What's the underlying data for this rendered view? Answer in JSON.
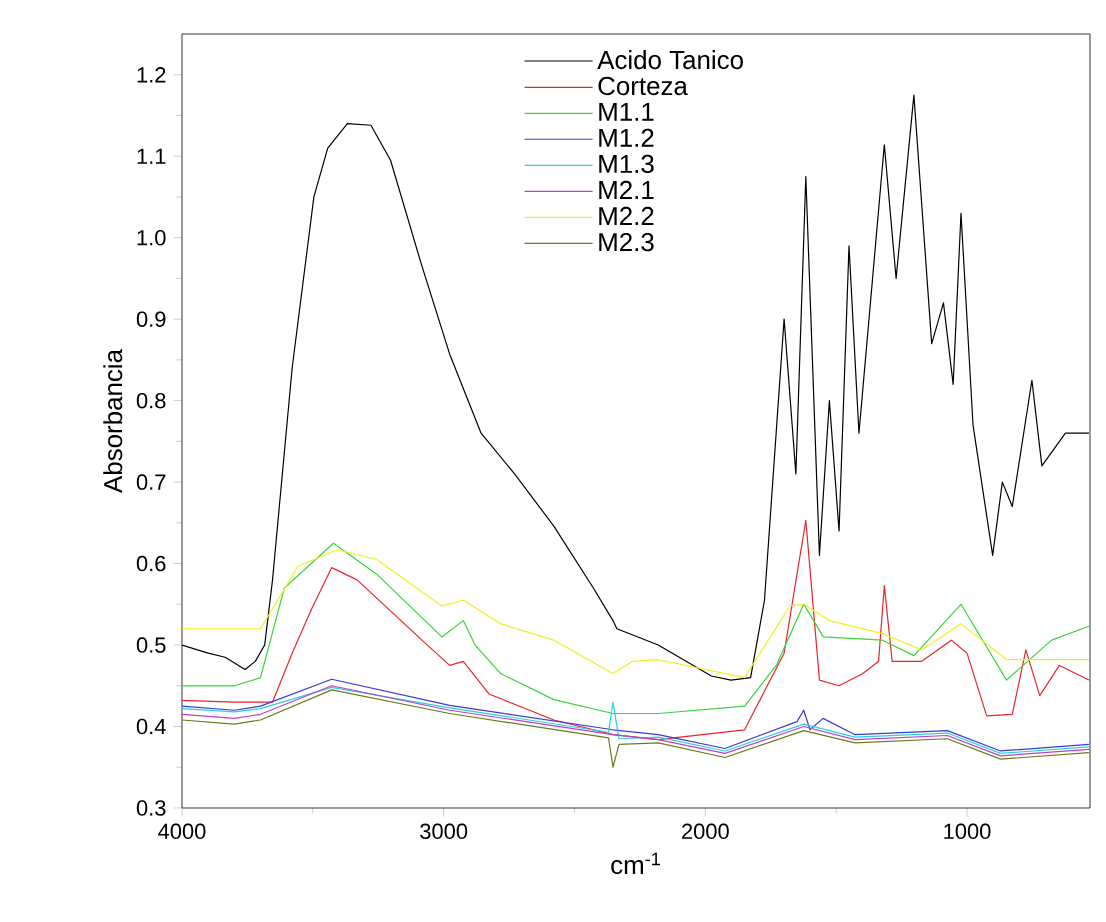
{
  "chart_data": {
    "type": "line",
    "xlabel": "cm$^{-1}$",
    "ylabel": "Absorbancia",
    "xlim": [
      4000,
      530
    ],
    "ylim": [
      0.3,
      1.25
    ],
    "xticks": [
      4000,
      3000,
      2000,
      1000
    ],
    "yticks": [
      0.3,
      0.4,
      0.5,
      0.6,
      0.7,
      0.8,
      0.9,
      {
        "value": 1.0,
        "label": "1.0"
      },
      1.1,
      1.2
    ],
    "legend": "top",
    "grid": false,
    "marker": "none",
    "line_style": "solid",
    "series": [
      {
        "name": "Acido Tanico",
        "color": "#000000",
        "x": [
          4000,
          3900,
          3835,
          3759,
          3720,
          3684,
          3654,
          3579,
          3496,
          3443,
          3368,
          3278,
          3203,
          3083,
          2977,
          2857,
          2729,
          2579,
          2428,
          2353,
          2338,
          2180,
          1977,
          1902,
          1827,
          1774,
          1699,
          1654,
          1616,
          1564,
          1526,
          1489,
          1451,
          1413,
          1316,
          1271,
          1203,
          1135,
          1090,
          1053,
          1023,
          977,
          902,
          865,
          827,
          752,
          714,
          624,
          534
        ],
        "values": [
          0.5,
          0.49,
          0.485,
          0.47,
          0.48,
          0.5,
          0.58,
          0.84,
          1.05,
          1.11,
          1.14,
          1.138,
          1.095,
          0.965,
          0.857,
          0.76,
          0.71,
          0.646,
          0.57,
          0.53,
          0.52,
          0.5,
          0.462,
          0.457,
          0.46,
          0.555,
          0.9,
          0.71,
          1.075,
          0.61,
          0.8,
          0.64,
          0.99,
          0.76,
          1.114,
          0.95,
          1.175,
          0.87,
          0.92,
          0.82,
          1.03,
          0.77,
          0.61,
          0.7,
          0.67,
          0.825,
          0.72,
          0.76,
          0.76
        ]
      },
      {
        "name": "Corteza",
        "color": "#e8262a",
        "x": [
          4000,
          3800,
          3700,
          3654,
          3579,
          3504,
          3428,
          3331,
          3083,
          2977,
          2925,
          2827,
          2579,
          2353,
          2180,
          1850,
          1699,
          1616,
          1564,
          1489,
          1398,
          1338,
          1316,
          1286,
          1173,
          1060,
          1000,
          925,
          827,
          775,
          722,
          647,
          534
        ],
        "values": [
          0.432,
          0.43,
          0.43,
          0.43,
          0.49,
          0.545,
          0.595,
          0.58,
          0.506,
          0.475,
          0.48,
          0.44,
          0.408,
          0.39,
          0.384,
          0.396,
          0.49,
          0.653,
          0.457,
          0.45,
          0.465,
          0.48,
          0.573,
          0.48,
          0.48,
          0.506,
          0.49,
          0.413,
          0.415,
          0.494,
          0.438,
          0.475,
          0.457
        ]
      },
      {
        "name": "M1.1",
        "color": "#3bd43b",
        "x": [
          4000,
          3800,
          3700,
          3609,
          3421,
          3256,
          3007,
          2925,
          2880,
          2782,
          2579,
          2353,
          2180,
          1850,
          1729,
          1624,
          1549,
          1323,
          1203,
          1023,
          849,
          677,
          534
        ],
        "values": [
          0.45,
          0.45,
          0.46,
          0.57,
          0.625,
          0.587,
          0.51,
          0.53,
          0.5,
          0.465,
          0.433,
          0.416,
          0.416,
          0.425,
          0.475,
          0.55,
          0.51,
          0.506,
          0.487,
          0.55,
          0.457,
          0.506,
          0.523
        ]
      },
      {
        "name": "M1.2",
        "color": "#3a3ad8",
        "x": [
          4000,
          3800,
          3700,
          3428,
          2977,
          2353,
          2180,
          1925,
          1650,
          1624,
          1600,
          1550,
          1428,
          1075,
          872,
          534
        ],
        "values": [
          0.425,
          0.42,
          0.425,
          0.458,
          0.426,
          0.396,
          0.39,
          0.373,
          0.406,
          0.42,
          0.396,
          0.41,
          0.39,
          0.395,
          0.37,
          0.378
        ]
      },
      {
        "name": "M1.3",
        "color": "#2ad0e0",
        "x": [
          4000,
          3800,
          3700,
          3428,
          2977,
          2370,
          2353,
          2330,
          2180,
          1925,
          1624,
          1428,
          1075,
          872,
          534
        ],
        "values": [
          0.422,
          0.418,
          0.422,
          0.448,
          0.423,
          0.393,
          0.43,
          0.385,
          0.387,
          0.37,
          0.403,
          0.387,
          0.392,
          0.367,
          0.375
        ]
      },
      {
        "name": "M2.1",
        "color": "#c040c0",
        "x": [
          4000,
          3800,
          3700,
          3428,
          2977,
          2353,
          2180,
          1925,
          1624,
          1428,
          1075,
          872,
          534
        ],
        "values": [
          0.415,
          0.41,
          0.415,
          0.45,
          0.42,
          0.39,
          0.384,
          0.367,
          0.4,
          0.384,
          0.389,
          0.364,
          0.372
        ]
      },
      {
        "name": "M2.2",
        "color": "#f0f020",
        "x": [
          4000,
          3800,
          3700,
          3556,
          3406,
          3256,
          3007,
          2925,
          2782,
          2579,
          2353,
          2278,
          2180,
          1850,
          1677,
          1624,
          1526,
          1323,
          1173,
          1023,
          849,
          677,
          534
        ],
        "values": [
          0.52,
          0.52,
          0.52,
          0.597,
          0.617,
          0.605,
          0.548,
          0.555,
          0.526,
          0.506,
          0.465,
          0.48,
          0.482,
          0.46,
          0.548,
          0.55,
          0.53,
          0.514,
          0.494,
          0.526,
          0.482,
          0.482,
          0.482
        ]
      },
      {
        "name": "M2.3",
        "color": "#6b7a1a",
        "x": [
          4000,
          3800,
          3700,
          3428,
          2977,
          2370,
          2353,
          2330,
          2180,
          1925,
          1624,
          1428,
          1075,
          872,
          534
        ],
        "values": [
          0.408,
          0.403,
          0.408,
          0.445,
          0.416,
          0.386,
          0.35,
          0.378,
          0.38,
          0.362,
          0.395,
          0.38,
          0.385,
          0.36,
          0.368
        ]
      }
    ]
  }
}
